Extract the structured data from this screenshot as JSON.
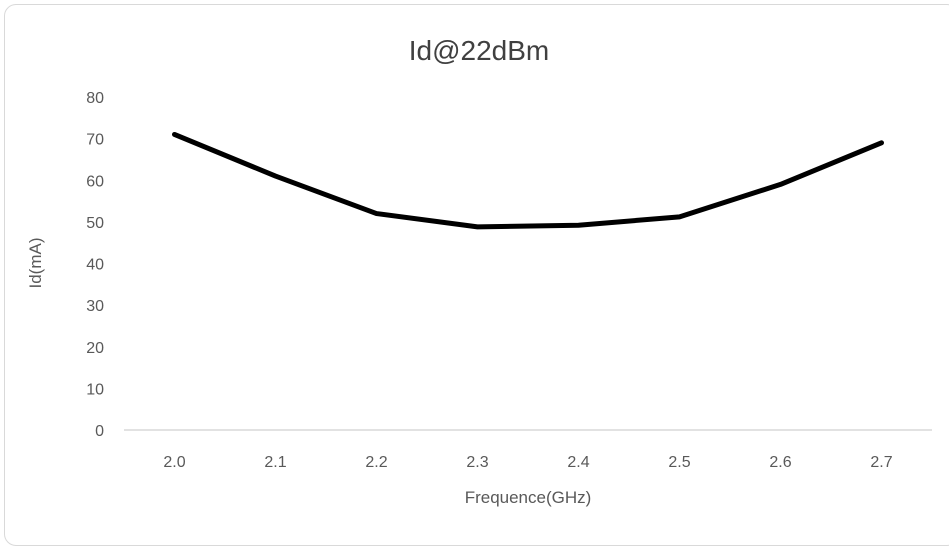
{
  "chart_data": {
    "type": "line",
    "title": "Id@22dBm",
    "xlabel": "Frequence(GHz)",
    "ylabel": "Id(mA)",
    "categories": [
      "2.0",
      "2.1",
      "2.2",
      "2.3",
      "2.4",
      "2.5",
      "2.6",
      "2.7"
    ],
    "series": [
      {
        "values": [
          71,
          61,
          52,
          48.8,
          49.2,
          51.2,
          59,
          69
        ],
        "color": "#000000"
      }
    ],
    "ylim": [
      0,
      80
    ],
    "yticks": [
      "0",
      "10",
      "20",
      "30",
      "40",
      "50",
      "60",
      "70",
      "80"
    ],
    "grid": false,
    "legend": "none"
  }
}
